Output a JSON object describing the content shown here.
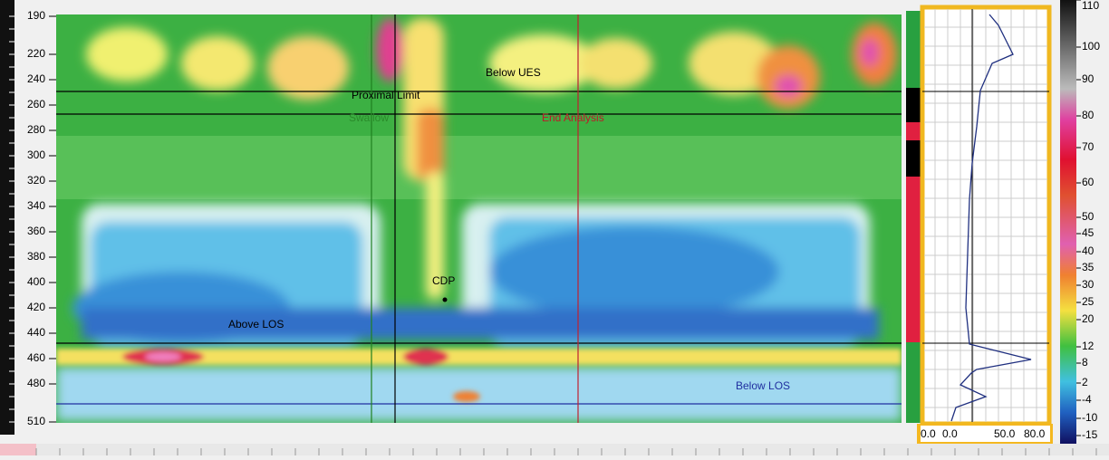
{
  "axis": {
    "labels": [
      "190",
      "220",
      "240",
      "260",
      "280",
      "300",
      "320",
      "340",
      "360",
      "380",
      "400",
      "420",
      "440",
      "460",
      "480",
      "510"
    ]
  },
  "annotations": {
    "below_ues": "Below UES",
    "proximal_limit": "Proximal Limit",
    "swallow": "Swallow",
    "end_analysis": "End Analysis",
    "cdp": "CDP",
    "above_los": "Above LOS",
    "below_los": "Below LOS"
  },
  "color_scale": {
    "labels": [
      "110",
      "100",
      "90",
      "80",
      "70",
      "60",
      "50",
      "45",
      "40",
      "35",
      "30",
      "25",
      "20",
      "12",
      "8",
      "2",
      "-4",
      "-10",
      "-15"
    ]
  },
  "profile": {
    "x_labels": [
      "0.0",
      "0.0",
      "50.0",
      "80.0"
    ]
  }
}
